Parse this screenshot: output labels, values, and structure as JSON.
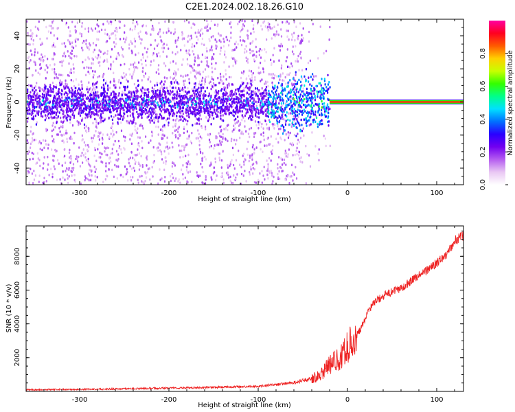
{
  "title": "C2E1.2024.002.18.26.G10",
  "chart_data": [
    {
      "type": "heatmap",
      "xlabel": "Height of straight line (km)",
      "ylabel": "Frequency (Hz)",
      "xlim": [
        -360,
        130
      ],
      "ylim": [
        -50,
        50
      ],
      "x_ticks": [
        -300,
        -200,
        -100,
        0,
        100
      ],
      "y_ticks": [
        -40,
        -20,
        0,
        20,
        40
      ],
      "colorbar": {
        "label": "Normalized spectral amplitude",
        "range": [
          0.0,
          1.0
        ],
        "ticks": [
          0.0,
          0.2,
          0.4,
          0.6,
          0.8
        ],
        "colors": [
          "#ffffff",
          "#e9c7f3",
          "#b55df0",
          "#7200f0",
          "#2a00ff",
          "#0070ff",
          "#00e0ff",
          "#00ff8a",
          "#33ff00",
          "#c8ff00",
          "#ffd000",
          "#ff5a00",
          "#ff0020",
          "#ff00a0"
        ]
      },
      "features": {
        "carrier_frequency_hz": 0,
        "carrier_start_x": -20,
        "noise_band_halfwidth_hz": 8,
        "scatter_fade_x": -50
      }
    },
    {
      "type": "line",
      "xlabel": "Height of straight line (km)",
      "ylabel": "SNR (10 * v/v)",
      "xlim": [
        -360,
        130
      ],
      "ylim": [
        0,
        9800
      ],
      "x_ticks": [
        -300,
        -200,
        -100,
        0,
        100
      ],
      "y_ticks": [
        2000,
        4000,
        6000,
        8000
      ],
      "series": [
        {
          "color": "#ee2222",
          "x": [
            -360,
            -300,
            -250,
            -200,
            -150,
            -100,
            -80,
            -60,
            -40,
            -30,
            -25,
            -20,
            -15,
            -10,
            -5,
            0,
            5,
            10,
            15,
            20,
            25,
            30,
            40,
            50,
            60,
            70,
            80,
            90,
            100,
            105,
            110,
            115,
            120,
            125,
            130
          ],
          "values": [
            100,
            120,
            150,
            200,
            240,
            300,
            400,
            520,
            750,
            1000,
            1300,
            1600,
            1750,
            1900,
            2200,
            2600,
            3000,
            3300,
            3700,
            4300,
            4900,
            5300,
            5650,
            5900,
            6100,
            6500,
            6900,
            7200,
            7600,
            7800,
            8100,
            8400,
            8900,
            9100,
            9200
          ]
        }
      ]
    }
  ]
}
